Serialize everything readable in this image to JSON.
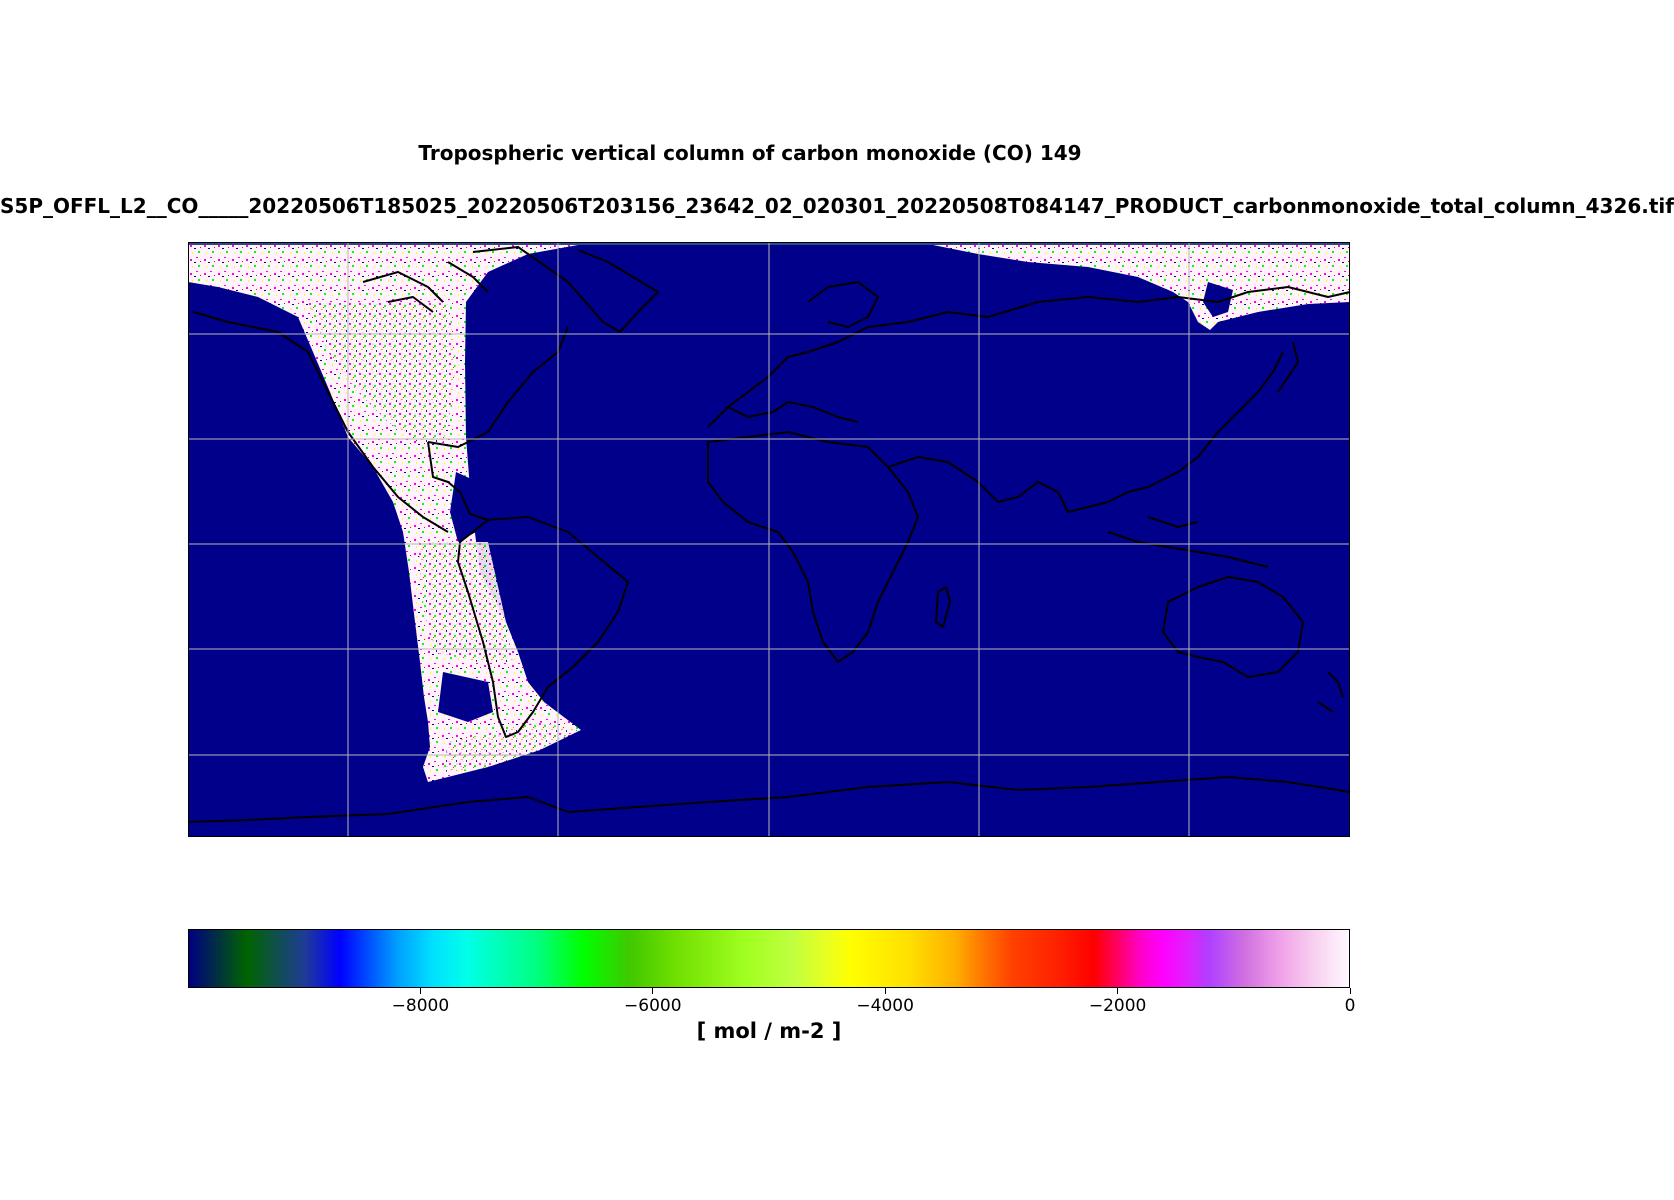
{
  "title": "Tropospheric vertical column of carbon monoxide (CO) 149",
  "subtitle": "S5P_OFFL_L2__CO_____20220506T185025_20220506T203156_23642_02_020301_20220508T084147_PRODUCT_carbonmonoxide_total_column_4326.tif",
  "map": {
    "projection": "plate-carree",
    "extent": {
      "lon": [
        -180,
        180
      ],
      "lat": [
        -72,
        90
      ]
    },
    "background_color": "#00008b",
    "coastline_color": "#000000",
    "gridline_color": "#b0b0b0",
    "swath_fill_color": "#fff4fb",
    "swath_speckle_colors": [
      "#ff00ee",
      "#ff0000",
      "#00ff00",
      "#ffff00",
      "#00ffff",
      "#ffaa00"
    ]
  },
  "colorbar": {
    "units": "[ mol / m-2 ]",
    "range": [
      -10000,
      0
    ],
    "ticks": [
      -8000,
      -6000,
      -4000,
      -2000,
      0
    ],
    "tick_labels": [
      "−8000",
      "−6000",
      "−4000",
      "−2000",
      "0"
    ],
    "colormap": "gist_ncar",
    "stops": [
      {
        "v": 0.0,
        "c": "#000080"
      },
      {
        "v": 0.05,
        "c": "#006400"
      },
      {
        "v": 0.1,
        "c": "#1e3c96"
      },
      {
        "v": 0.13,
        "c": "#0000ff"
      },
      {
        "v": 0.18,
        "c": "#00a0ff"
      },
      {
        "v": 0.21,
        "c": "#00e0ff"
      },
      {
        "v": 0.24,
        "c": "#00ffe8"
      },
      {
        "v": 0.3,
        "c": "#00ff80"
      },
      {
        "v": 0.34,
        "c": "#00ff00"
      },
      {
        "v": 0.38,
        "c": "#40c800"
      },
      {
        "v": 0.42,
        "c": "#70e000"
      },
      {
        "v": 0.48,
        "c": "#a0ff20"
      },
      {
        "v": 0.52,
        "c": "#c0ff40"
      },
      {
        "v": 0.55,
        "c": "#e8ff20"
      },
      {
        "v": 0.57,
        "c": "#ffff00"
      },
      {
        "v": 0.62,
        "c": "#ffe000"
      },
      {
        "v": 0.66,
        "c": "#ffb000"
      },
      {
        "v": 0.68,
        "c": "#ff8000"
      },
      {
        "v": 0.71,
        "c": "#ff4000"
      },
      {
        "v": 0.75,
        "c": "#ff2000"
      },
      {
        "v": 0.78,
        "c": "#ff0000"
      },
      {
        "v": 0.8,
        "c": "#ff0060"
      },
      {
        "v": 0.82,
        "c": "#ff00c8"
      },
      {
        "v": 0.84,
        "c": "#ff00ff"
      },
      {
        "v": 0.86,
        "c": "#e020ff"
      },
      {
        "v": 0.88,
        "c": "#b040ff"
      },
      {
        "v": 0.91,
        "c": "#d070e0"
      },
      {
        "v": 0.94,
        "c": "#f0a0e8"
      },
      {
        "v": 0.97,
        "c": "#f8d0f0"
      },
      {
        "v": 1.0,
        "c": "#fff8ff"
      }
    ]
  }
}
